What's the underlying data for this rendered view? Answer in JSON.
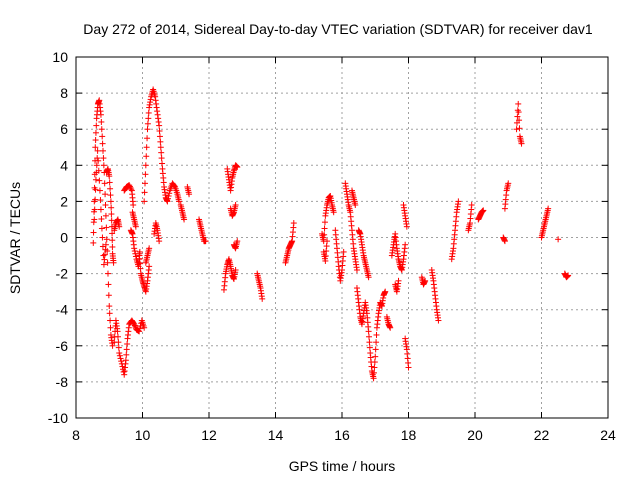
{
  "chart_data": {
    "type": "scatter",
    "title": "Day 272 of 2014, Sidereal Day-to-day VTEC variation (SDTVAR) for receiver dav1",
    "xlabel": "GPS time / hours",
    "ylabel": "SDTVAR / TECUs",
    "xlim": [
      8,
      24
    ],
    "ylim": [
      -10,
      10
    ],
    "xticks": [
      8,
      10,
      12,
      14,
      16,
      18,
      20,
      22,
      24
    ],
    "yticks": [
      -10,
      -8,
      -6,
      -4,
      -2,
      0,
      2,
      4,
      6,
      8,
      10
    ],
    "grid": true,
    "marker": "+",
    "color": "#ff0000",
    "series": [
      {
        "name": "SDTVAR",
        "segments": [
          [
            [
              8.52,
              -0.3
            ],
            [
              8.55,
              2.0
            ],
            [
              8.58,
              5.0
            ],
            [
              8.62,
              6.6
            ],
            [
              8.66,
              7.4
            ],
            [
              8.7,
              7.6
            ],
            [
              8.75,
              6.8
            ],
            [
              8.8,
              5.2
            ],
            [
              8.85,
              3.6
            ],
            [
              8.9,
              1.2
            ],
            [
              8.95,
              -1.4
            ],
            [
              9.0,
              -3.8
            ],
            [
              9.05,
              -5.4
            ],
            [
              9.1,
              -6.0
            ]
          ],
          [
            [
              8.55,
              1.0
            ],
            [
              8.6,
              3.2
            ],
            [
              8.65,
              4.8
            ],
            [
              8.72,
              2.6
            ],
            [
              8.78,
              0.5
            ],
            [
              8.84,
              -1.5
            ],
            [
              8.9,
              -0.4
            ]
          ],
          [
            [
              8.92,
              3.6
            ],
            [
              8.96,
              3.8
            ],
            [
              9.0,
              3.4
            ],
            [
              9.05,
              2.0
            ],
            [
              9.08,
              0.6
            ],
            [
              9.1,
              -0.9
            ],
            [
              9.13,
              -1.4
            ]
          ],
          [
            [
              9.15,
              -5.8
            ],
            [
              9.2,
              -4.6
            ],
            [
              9.25,
              -5.2
            ],
            [
              9.3,
              -6.4
            ],
            [
              9.38,
              -7.0
            ],
            [
              9.45,
              -7.6
            ],
            [
              9.5,
              -6.8
            ],
            [
              9.55,
              -5.6
            ],
            [
              9.6,
              -4.8
            ],
            [
              9.68,
              -4.6
            ],
            [
              9.75,
              -4.8
            ],
            [
              9.82,
              -5.1
            ],
            [
              9.9,
              -5.2
            ],
            [
              9.98,
              -4.6
            ],
            [
              10.05,
              -5.0
            ]
          ],
          [
            [
              9.15,
              0.4
            ],
            [
              9.2,
              0.8
            ],
            [
              9.26,
              1.0
            ],
            [
              9.3,
              0.6
            ]
          ],
          [
            [
              9.45,
              2.6
            ],
            [
              9.52,
              2.8
            ],
            [
              9.6,
              2.9
            ],
            [
              9.68,
              2.6
            ],
            [
              9.72,
              1.8
            ]
          ],
          [
            [
              9.65,
              0.4
            ],
            [
              9.7,
              0.2
            ],
            [
              9.75,
              -0.6
            ],
            [
              9.82,
              -1.2
            ],
            [
              9.88,
              -1.6
            ],
            [
              9.92,
              -0.8
            ]
          ],
          [
            [
              9.7,
              1.4
            ],
            [
              9.75,
              1.0
            ],
            [
              9.8,
              0.6
            ]
          ],
          [
            [
              9.9,
              -0.9
            ],
            [
              9.95,
              -2.0
            ],
            [
              10.0,
              -2.4
            ],
            [
              10.05,
              -2.7
            ],
            [
              10.1,
              -3.0
            ],
            [
              10.15,
              -2.4
            ],
            [
              10.2,
              -1.6
            ]
          ],
          [
            [
              10.05,
              2.0
            ],
            [
              10.1,
              4.0
            ],
            [
              10.15,
              6.0
            ],
            [
              10.2,
              7.2
            ],
            [
              10.26,
              7.8
            ],
            [
              10.32,
              8.2
            ],
            [
              10.38,
              7.8
            ],
            [
              10.44,
              7.0
            ],
            [
              10.5,
              6.2
            ],
            [
              10.55,
              5.0
            ],
            [
              10.6,
              3.8
            ],
            [
              10.65,
              2.8
            ],
            [
              10.7,
              2.2
            ],
            [
              10.75,
              2.0
            ],
            [
              10.82,
              2.6
            ],
            [
              10.9,
              3.0
            ],
            [
              10.98,
              2.8
            ],
            [
              11.05,
              2.4
            ],
            [
              11.1,
              2.0
            ]
          ],
          [
            [
              10.1,
              -1.4
            ],
            [
              10.15,
              -1.0
            ],
            [
              10.2,
              -0.6
            ]
          ],
          [
            [
              10.35,
              0.2
            ],
            [
              10.4,
              0.8
            ],
            [
              10.45,
              0.4
            ],
            [
              10.5,
              -0.2
            ]
          ],
          [
            [
              11.15,
              1.8
            ],
            [
              11.2,
              1.4
            ],
            [
              11.25,
              1.0
            ]
          ],
          [
            [
              11.35,
              2.8
            ],
            [
              11.4,
              2.4
            ]
          ],
          [
            [
              11.7,
              1.0
            ],
            [
              11.75,
              0.6
            ],
            [
              11.8,
              0.2
            ],
            [
              11.85,
              -0.2
            ],
            [
              11.9,
              -0.2
            ]
          ],
          [
            [
              12.45,
              -2.9
            ],
            [
              12.5,
              -2.0
            ],
            [
              12.55,
              -1.5
            ],
            [
              12.6,
              -1.2
            ],
            [
              12.65,
              -1.6
            ],
            [
              12.7,
              -2.1
            ],
            [
              12.75,
              -2.3
            ],
            [
              12.8,
              -1.8
            ]
          ],
          [
            [
              12.55,
              3.8
            ],
            [
              12.6,
              3.2
            ],
            [
              12.65,
              2.6
            ],
            [
              12.7,
              3.3
            ],
            [
              12.75,
              3.7
            ],
            [
              12.8,
              4.0
            ],
            [
              12.85,
              3.9
            ]
          ],
          [
            [
              12.65,
              1.6
            ],
            [
              12.7,
              1.2
            ],
            [
              12.75,
              1.4
            ],
            [
              12.8,
              1.8
            ]
          ],
          [
            [
              12.75,
              -0.4
            ],
            [
              12.8,
              -0.6
            ],
            [
              12.85,
              -0.2
            ]
          ],
          [
            [
              13.45,
              -2.0
            ],
            [
              13.5,
              -2.4
            ],
            [
              13.55,
              -2.8
            ],
            [
              13.6,
              -3.4
            ]
          ],
          [
            [
              14.3,
              -1.4
            ],
            [
              14.35,
              -1.0
            ],
            [
              14.4,
              -0.6
            ],
            [
              14.45,
              -0.4
            ],
            [
              14.5,
              -0.2
            ],
            [
              14.55,
              0.8
            ]
          ],
          [
            [
              15.4,
              0.2
            ],
            [
              15.45,
              -0.2
            ],
            [
              15.5,
              1.2
            ],
            [
              15.55,
              1.8
            ],
            [
              15.6,
              2.2
            ],
            [
              15.65,
              2.3
            ],
            [
              15.7,
              1.8
            ],
            [
              15.75,
              1.4
            ]
          ],
          [
            [
              15.45,
              -0.8
            ],
            [
              15.5,
              -1.3
            ],
            [
              15.55,
              -0.2
            ]
          ],
          [
            [
              15.8,
              0.4
            ],
            [
              15.85,
              -0.6
            ],
            [
              15.9,
              -1.6
            ],
            [
              15.95,
              -2.4
            ],
            [
              16.0,
              -1.8
            ],
            [
              16.05,
              -0.8
            ]
          ],
          [
            [
              16.1,
              3.0
            ],
            [
              16.15,
              2.4
            ],
            [
              16.2,
              1.8
            ],
            [
              16.25,
              1.4
            ],
            [
              16.3,
              0.4
            ],
            [
              16.35,
              -0.6
            ],
            [
              16.4,
              -1.2
            ],
            [
              16.45,
              -1.8
            ]
          ],
          [
            [
              16.3,
              2.6
            ],
            [
              16.35,
              2.2
            ],
            [
              16.4,
              1.8
            ]
          ],
          [
            [
              16.45,
              -2.8
            ],
            [
              16.5,
              -3.6
            ],
            [
              16.55,
              -4.4
            ],
            [
              16.6,
              -4.8
            ],
            [
              16.65,
              -4.2
            ],
            [
              16.7,
              -3.6
            ],
            [
              16.75,
              -4.2
            ],
            [
              16.8,
              -5.2
            ],
            [
              16.85,
              -6.4
            ],
            [
              16.9,
              -7.4
            ],
            [
              16.95,
              -7.8
            ],
            [
              17.0,
              -6.6
            ],
            [
              17.05,
              -5.0
            ],
            [
              17.1,
              -4.2
            ],
            [
              17.15,
              -3.6
            ],
            [
              17.2,
              -3.8
            ],
            [
              17.25,
              -3.2
            ],
            [
              17.3,
              -3.0
            ]
          ],
          [
            [
              16.5,
              0.4
            ],
            [
              16.55,
              0.2
            ],
            [
              16.6,
              -0.4
            ],
            [
              16.65,
              -1.0
            ],
            [
              16.7,
              -1.4
            ],
            [
              16.75,
              -1.8
            ],
            [
              16.8,
              -2.2
            ]
          ],
          [
            [
              17.35,
              -4.4
            ],
            [
              17.4,
              -4.8
            ],
            [
              17.45,
              -5.0
            ]
          ],
          [
            [
              17.5,
              -1.0
            ],
            [
              17.55,
              -0.4
            ],
            [
              17.6,
              0.2
            ],
            [
              17.65,
              -0.6
            ],
            [
              17.7,
              -1.2
            ],
            [
              17.75,
              -1.6
            ],
            [
              17.8,
              -1.8
            ],
            [
              17.85,
              -1.2
            ],
            [
              17.9,
              -0.4
            ]
          ],
          [
            [
              17.6,
              -2.6
            ],
            [
              17.65,
              -3.0
            ],
            [
              17.7,
              -2.4
            ]
          ],
          [
            [
              17.85,
              1.8
            ],
            [
              17.9,
              1.2
            ],
            [
              17.95,
              0.6
            ]
          ],
          [
            [
              17.9,
              -5.6
            ],
            [
              17.95,
              -6.2
            ],
            [
              18.0,
              -7.2
            ]
          ],
          [
            [
              18.4,
              -2.2
            ],
            [
              18.45,
              -2.6
            ],
            [
              18.5,
              -2.4
            ]
          ],
          [
            [
              18.7,
              -1.8
            ],
            [
              18.75,
              -2.4
            ],
            [
              18.8,
              -3.2
            ],
            [
              18.85,
              -4.0
            ],
            [
              18.9,
              -4.6
            ]
          ],
          [
            [
              19.3,
              -1.2
            ],
            [
              19.35,
              -0.6
            ],
            [
              19.4,
              0.4
            ],
            [
              19.45,
              1.4
            ],
            [
              19.5,
              2.0
            ]
          ],
          [
            [
              19.8,
              0.4
            ],
            [
              19.85,
              0.8
            ],
            [
              19.9,
              1.8
            ]
          ],
          [
            [
              20.1,
              1.0
            ],
            [
              20.15,
              1.2
            ],
            [
              20.2,
              1.4
            ],
            [
              20.25,
              1.5
            ]
          ],
          [
            [
              20.85,
              0.0
            ],
            [
              20.9,
              -0.2
            ]
          ],
          [
            [
              20.9,
              1.6
            ],
            [
              20.95,
              2.6
            ],
            [
              21.0,
              3.0
            ]
          ],
          [
            [
              21.25,
              6.0
            ],
            [
              21.3,
              7.4
            ],
            [
              21.35,
              5.6
            ],
            [
              21.4,
              5.2
            ]
          ],
          [
            [
              22.0,
              0.0
            ],
            [
              22.05,
              0.4
            ],
            [
              22.1,
              0.8
            ],
            [
              22.15,
              1.2
            ],
            [
              22.2,
              1.6
            ]
          ],
          [
            [
              22.5,
              -0.1
            ]
          ],
          [
            [
              22.7,
              -2.0
            ],
            [
              22.75,
              -2.2
            ],
            [
              22.8,
              -2.1
            ]
          ]
        ]
      }
    ]
  }
}
